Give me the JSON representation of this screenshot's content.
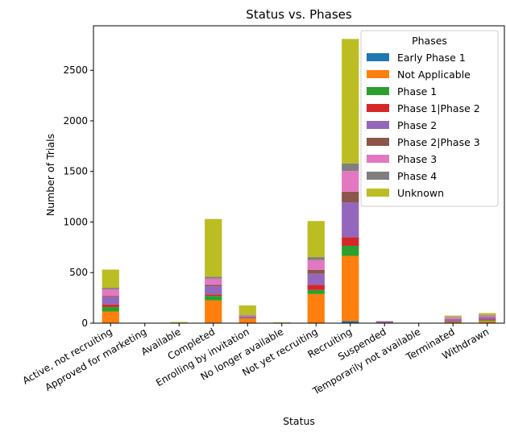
{
  "chart_data": {
    "type": "bar",
    "stacked": true,
    "title": "Status vs. Phases",
    "xlabel": "Status",
    "ylabel": "Number of Trials",
    "ylim": [
      0,
      2940
    ],
    "yticks": [
      0,
      500,
      1000,
      1500,
      2000,
      2500
    ],
    "grid": false,
    "legend": {
      "title": "Phases",
      "placement": "top-right"
    },
    "categories": [
      "Active, not recruiting",
      "Approved for marketing",
      "Available",
      "Completed",
      "Enrolling by invitation",
      "No longer available",
      "Not yet recruiting",
      "Recruiting",
      "Suspended",
      "Temporarily not available",
      "Terminated",
      "Withdrawn"
    ],
    "series": [
      {
        "name": "Early Phase 1",
        "color": "#1f77b4",
        "values": [
          5,
          0,
          0,
          5,
          0,
          0,
          3,
          20,
          0,
          0,
          1,
          1
        ]
      },
      {
        "name": "Not Applicable",
        "color": "#ff7f0e",
        "values": [
          110,
          1,
          6,
          220,
          45,
          2,
          285,
          645,
          4,
          0,
          12,
          20
        ]
      },
      {
        "name": "Phase 1",
        "color": "#2ca02c",
        "values": [
          45,
          0,
          0,
          45,
          6,
          0,
          40,
          100,
          1,
          0,
          3,
          10
        ]
      },
      {
        "name": "Phase 1|Phase 2",
        "color": "#d62728",
        "values": [
          25,
          0,
          0,
          15,
          2,
          0,
          50,
          85,
          1,
          0,
          3,
          5
        ]
      },
      {
        "name": "Phase 2",
        "color": "#9467bd",
        "values": [
          75,
          0,
          0,
          80,
          12,
          0,
          110,
          345,
          10,
          0,
          20,
          20
        ]
      },
      {
        "name": "Phase 2|Phase 3",
        "color": "#8c564b",
        "values": [
          10,
          0,
          0,
          15,
          1,
          0,
          40,
          105,
          1,
          0,
          3,
          5
        ]
      },
      {
        "name": "Phase 3",
        "color": "#e377c2",
        "values": [
          65,
          0,
          0,
          60,
          10,
          0,
          95,
          205,
          2,
          0,
          15,
          15
        ]
      },
      {
        "name": "Phase 4",
        "color": "#7f7f7f",
        "values": [
          15,
          0,
          0,
          20,
          4,
          0,
          30,
          75,
          1,
          0,
          5,
          5
        ]
      },
      {
        "name": "Unknown",
        "color": "#bcbd22",
        "values": [
          180,
          2,
          6,
          570,
          95,
          6,
          357,
          1230,
          0,
          0,
          13,
          19
        ]
      }
    ]
  }
}
